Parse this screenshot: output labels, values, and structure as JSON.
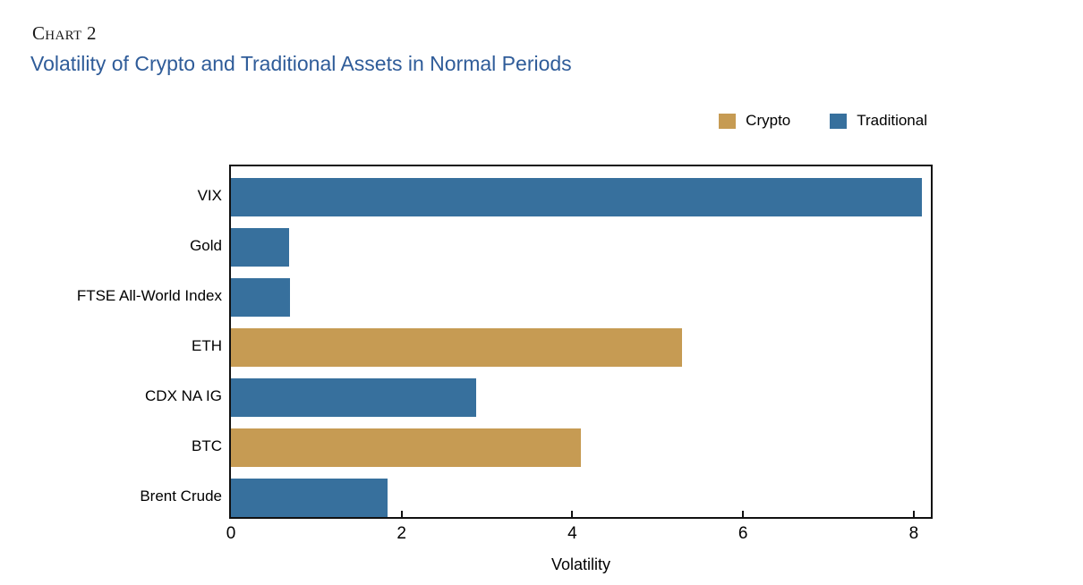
{
  "header": {
    "eyebrow": "Chart 2",
    "title": "Volatility of Crypto and Traditional Assets in Normal Periods"
  },
  "legend": [
    {
      "label": "Crypto",
      "color": "#C69B53"
    },
    {
      "label": "Traditional",
      "color": "#37709D"
    }
  ],
  "chart_data": {
    "type": "bar",
    "orientation": "horizontal",
    "title": "Volatility of Crypto and Traditional Assets in Normal Periods",
    "categories": [
      "VIX",
      "Gold",
      "FTSE All-World Index",
      "ETH",
      "CDX NA IG",
      "BTC",
      "Brent Crude"
    ],
    "values": [
      8.1,
      0.68,
      0.69,
      5.28,
      2.87,
      4.1,
      1.84
    ],
    "series_by_bar": [
      "Traditional",
      "Traditional",
      "Traditional",
      "Crypto",
      "Traditional",
      "Crypto",
      "Traditional"
    ],
    "colors": {
      "Crypto": "#C69B53",
      "Traditional": "#37709D"
    },
    "xlabel": "Volatility",
    "ylabel": "",
    "xlim": [
      0,
      8.2
    ],
    "xticks": [
      0,
      2,
      4,
      6,
      8
    ],
    "grid": false,
    "legend_position": "top-right"
  }
}
